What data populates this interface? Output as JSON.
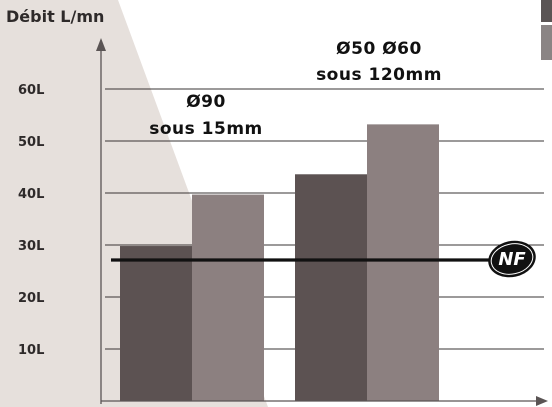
{
  "chart_data": {
    "type": "bar",
    "ylabel": "Débit L/mn",
    "xlabel": "",
    "ylim": [
      0,
      70
    ],
    "yticks": [
      10,
      20,
      30,
      40,
      50,
      60
    ],
    "ytick_labels": [
      "10L",
      "20L",
      "30L",
      "40L",
      "50L",
      "60L"
    ],
    "groups": [
      {
        "label_lines": [
          "Ø90",
          "sous 15mm"
        ],
        "values": [
          29.8,
          39.7
        ]
      },
      {
        "label_lines": [
          "Ø50 Ø60",
          "sous 120mm"
        ],
        "values": [
          43.6,
          53.2
        ]
      }
    ],
    "bar_colors": [
      "#5c5252",
      "#8c8080"
    ],
    "reference_line": {
      "value": 27.5,
      "color": "#111111",
      "badge": "NF"
    },
    "grid": true,
    "colors": {
      "background": "#ffffff",
      "wedge": "#e6e0dc",
      "grid": "#3a3434",
      "axis": "#5a5454",
      "corner": "#8a8484"
    }
  }
}
